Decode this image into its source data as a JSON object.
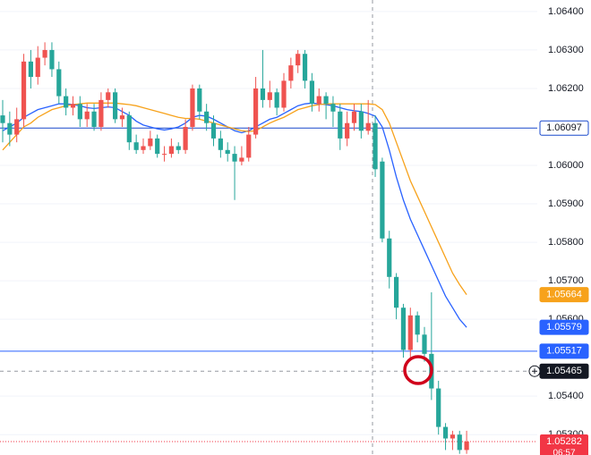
{
  "chart_data": {
    "type": "candlestick",
    "up_color": "#ef5350",
    "down_color": "#26a69a",
    "open": [
      1.0613,
      1.0611,
      1.0608,
      1.0612,
      1.0627,
      1.0623,
      1.0628,
      1.063,
      1.0625,
      1.0618,
      1.0615,
      1.0616,
      1.0612,
      1.0614,
      1.061,
      1.0617,
      1.0619,
      1.0612,
      1.0613,
      1.0606,
      1.0604,
      1.0605,
      1.0607,
      1.0603,
      1.0603,
      1.0605,
      1.0604,
      1.061,
      1.062,
      1.0614,
      1.0611,
      1.0607,
      1.0604,
      1.0603,
      1.0601,
      1.0602,
      1.0608,
      1.062,
      1.0617,
      1.0619,
      1.0615,
      1.0622,
      1.0626,
      1.0629,
      1.0622,
      1.0616,
      1.0618,
      1.0616,
      1.0614,
      1.0607,
      1.0611,
      1.0614,
      1.0609,
      1.0611,
      1.0601,
      1.0581,
      1.0571,
      1.0563,
      1.0552,
      1.0561,
      1.0556,
      1.0551,
      1.0542,
      1.0532,
      1.0529,
      1.053,
      1.0526
    ],
    "high": [
      1.0617,
      1.0614,
      1.0615,
      1.0629,
      1.063,
      1.0631,
      1.0632,
      1.0632,
      1.0627,
      1.062,
      1.0618,
      1.0618,
      1.0616,
      1.0616,
      1.0619,
      1.062,
      1.062,
      1.0615,
      1.0614,
      1.0608,
      1.0607,
      1.0609,
      1.0608,
      1.0605,
      1.0607,
      1.0606,
      1.0612,
      1.0621,
      1.0621,
      1.0616,
      1.0613,
      1.0609,
      1.0606,
      1.0605,
      1.0605,
      1.061,
      1.0623,
      1.063,
      1.0622,
      1.062,
      1.0624,
      1.0628,
      1.063,
      1.063,
      1.0624,
      1.062,
      1.0619,
      1.0618,
      1.0616,
      1.0614,
      1.0616,
      1.0616,
      1.0617,
      1.0613,
      1.0602,
      1.0583,
      1.0572,
      1.0564,
      1.0563,
      1.0562,
      1.0558,
      1.0567,
      1.0544,
      1.0533,
      1.0531,
      1.0531,
      1.0531
    ],
    "low": [
      1.0606,
      1.0605,
      1.0606,
      1.061,
      1.062,
      1.0621,
      1.0626,
      1.0623,
      1.0616,
      1.0613,
      1.0613,
      1.061,
      1.061,
      1.0609,
      1.0609,
      1.0615,
      1.0611,
      1.061,
      1.0604,
      1.0603,
      1.0603,
      1.0604,
      1.0602,
      1.0601,
      1.0602,
      1.0603,
      1.0603,
      1.0609,
      1.0612,
      1.0609,
      1.0605,
      1.0602,
      1.0601,
      1.0591,
      1.06,
      1.0601,
      1.0607,
      1.0615,
      1.0615,
      1.0613,
      1.0614,
      1.062,
      1.0624,
      1.062,
      1.0614,
      1.0614,
      1.0612,
      1.061,
      1.0604,
      1.0605,
      1.0609,
      1.0607,
      1.0608,
      1.0597,
      1.058,
      1.0568,
      1.056,
      1.055,
      1.055,
      1.0554,
      1.0549,
      1.0539,
      1.053,
      1.0526,
      1.0526,
      1.0525,
      1.0525
    ],
    "close": [
      1.0611,
      1.0608,
      1.0612,
      1.0627,
      1.0623,
      1.0628,
      1.063,
      1.0625,
      1.0618,
      1.0615,
      1.0616,
      1.0612,
      1.0614,
      1.061,
      1.0617,
      1.0619,
      1.0612,
      1.0613,
      1.0606,
      1.0604,
      1.0605,
      1.0607,
      1.0603,
      1.0603,
      1.0605,
      1.0604,
      1.061,
      1.062,
      1.0614,
      1.0611,
      1.0607,
      1.0604,
      1.0603,
      1.0601,
      1.0602,
      1.0608,
      1.062,
      1.0617,
      1.0619,
      1.0615,
      1.0622,
      1.0626,
      1.0629,
      1.0622,
      1.0616,
      1.0618,
      1.0616,
      1.0614,
      1.0607,
      1.0611,
      1.0614,
      1.0609,
      1.0611,
      1.0599,
      1.0581,
      1.0571,
      1.0563,
      1.0552,
      1.0561,
      1.0556,
      1.0551,
      1.0542,
      1.0532,
      1.0529,
      1.053,
      1.0526,
      1.05282
    ],
    "moving_averages": [
      {
        "color": "#2962ff",
        "label_fill": "#2962ff",
        "values": [
          1.0609,
          1.061,
          1.0611,
          1.06125,
          1.06135,
          1.06145,
          1.0615,
          1.06155,
          1.0616,
          1.0616,
          1.06158,
          1.06155,
          1.0615,
          1.06148,
          1.0615,
          1.06152,
          1.0615,
          1.0614,
          1.0613,
          1.06115,
          1.06105,
          1.061,
          1.06095,
          1.06092,
          1.06095,
          1.061,
          1.0611,
          1.06125,
          1.0613,
          1.06128,
          1.0612,
          1.0611,
          1.061,
          1.0609,
          1.06085,
          1.0609,
          1.061,
          1.0611,
          1.0612,
          1.06125,
          1.06135,
          1.06145,
          1.06155,
          1.0616,
          1.06162,
          1.0616,
          1.06158,
          1.06155,
          1.0615,
          1.06145,
          1.06142,
          1.0614,
          1.06135,
          1.06128,
          1.061,
          1.0604,
          1.0597,
          1.0591,
          1.0586,
          1.0582,
          1.0578,
          1.0574,
          1.057,
          1.0566,
          1.0563,
          1.056,
          1.05579
        ]
      },
      {
        "color": "#f7a21b",
        "label_fill": "#f7a21b",
        "values": [
          1.0604,
          1.0606,
          1.0608,
          1.061,
          1.0611,
          1.06125,
          1.06135,
          1.06145,
          1.0615,
          1.06155,
          1.06158,
          1.0616,
          1.06162,
          1.06162,
          1.06162,
          1.06162,
          1.06162,
          1.0616,
          1.06158,
          1.06155,
          1.0615,
          1.06145,
          1.0614,
          1.06135,
          1.0613,
          1.06125,
          1.06122,
          1.06122,
          1.0612,
          1.06115,
          1.0611,
          1.06105,
          1.061,
          1.06095,
          1.0609,
          1.06088,
          1.0609,
          1.061,
          1.0611,
          1.06118,
          1.06125,
          1.06135,
          1.06145,
          1.0615,
          1.06155,
          1.06158,
          1.0616,
          1.0616,
          1.0616,
          1.0616,
          1.0616,
          1.0616,
          1.0616,
          1.06158,
          1.06145,
          1.0611,
          1.0606,
          1.0601,
          1.0596,
          1.0592,
          1.0588,
          1.0584,
          1.058,
          1.0576,
          1.0572,
          1.0569,
          1.05664
        ]
      }
    ],
    "price_lines": [
      {
        "value": 1.06097,
        "color": "#1848cc",
        "label_fill": "#ffffff",
        "label_text": "#131722"
      },
      {
        "value": 1.05517,
        "color": "#2962ff",
        "label_fill": "#2962ff",
        "label_text": "#ffffff"
      }
    ],
    "crosshair": {
      "value": 1.05465,
      "color": "#9598a1",
      "label_fill": "#131722"
    },
    "last_price": {
      "value": 1.05282,
      "color": "#f23645"
    },
    "countdown": "06:57",
    "ylim": [
      1.05247,
      1.0643
    ],
    "yticks": [
      {
        "value": 1.064,
        "label": "1.06400"
      },
      {
        "value": 1.063,
        "label": "1.06300"
      },
      {
        "value": 1.062,
        "label": "1.06200"
      },
      {
        "value": 1.06,
        "label": "1.06000"
      },
      {
        "value": 1.059,
        "label": "1.05900"
      },
      {
        "value": 1.058,
        "label": "1.05800"
      },
      {
        "value": 1.057,
        "label": "1.05700"
      },
      {
        "value": 1.056,
        "label": "1.05600"
      },
      {
        "value": 1.054,
        "label": "1.05400"
      },
      {
        "value": 1.053,
        "label": "1.05300"
      }
    ],
    "grid": true
  }
}
